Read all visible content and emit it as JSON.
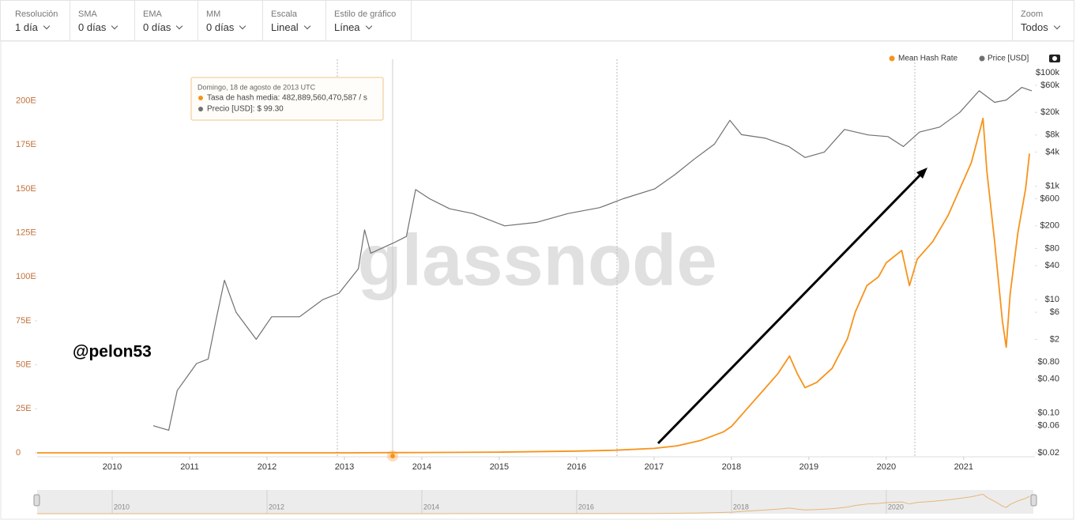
{
  "toolbar": [
    {
      "label": "Resolución",
      "value": "1 día"
    },
    {
      "label": "SMA",
      "value": "0 días"
    },
    {
      "label": "EMA",
      "value": "0 días"
    },
    {
      "label": "MM",
      "value": "0 días"
    },
    {
      "label": "Escala",
      "value": "Lineal"
    },
    {
      "label": "Estilo de gráfico",
      "value": "Línea"
    }
  ],
  "zoom": {
    "label": "Zoom",
    "value": "Todos"
  },
  "watermark": "glassnode",
  "annotation": "@pelon53",
  "tooltip": {
    "date": "Domingo, 18 de agosto de 2013 UTC",
    "hash": "Tasa de hash media: 482,889,560,470,587 / s",
    "price": "Precio [USD]: $ 99.30"
  },
  "navigator": {
    "ticks": [
      2010,
      2012,
      2014,
      2016,
      2018,
      2020
    ]
  },
  "chart_data": {
    "type": "line",
    "xlim": [
      2009.03,
      2021.9
    ],
    "xticks": [
      2010,
      2011,
      2012,
      2013,
      2014,
      2015,
      2016,
      2017,
      2018,
      2019,
      2020,
      2021
    ],
    "ylim": [
      0,
      216
    ],
    "yticks": [
      0,
      {
        "value": 25,
        "label": "25E"
      },
      {
        "value": 50,
        "label": "50E"
      },
      {
        "value": 75,
        "label": "75E"
      },
      {
        "value": 100,
        "label": "100E"
      },
      {
        "value": 125,
        "label": "125E"
      },
      {
        "value": 150,
        "label": "150E"
      },
      {
        "value": 175,
        "label": "175E"
      },
      {
        "value": 200,
        "label": "200E"
      }
    ],
    "y2lim": [
      0.02,
      100000
    ],
    "y2scale": "log",
    "y2ticks": [
      {
        "value": 100000,
        "label": "$100k"
      },
      {
        "value": 60000,
        "label": "$60k"
      },
      {
        "value": 20000,
        "label": "$20k"
      },
      {
        "value": 8000,
        "label": "$8k"
      },
      {
        "value": 4000,
        "label": "$4k"
      },
      {
        "value": 1000,
        "label": "$1k"
      },
      {
        "value": 600,
        "label": "$600"
      },
      {
        "value": 200,
        "label": "$200"
      },
      {
        "value": 80,
        "label": "$80"
      },
      {
        "value": 40,
        "label": "$40"
      },
      {
        "value": 10,
        "label": "$10"
      },
      {
        "value": 6,
        "label": "$6"
      },
      {
        "value": 2,
        "label": "$2"
      },
      {
        "value": 0.8,
        "label": "$0.80"
      },
      {
        "value": 0.4,
        "label": "$0.40"
      },
      {
        "value": 0.1,
        "label": "$0.10"
      },
      {
        "value": 0.06,
        "label": "$0.06"
      },
      {
        "value": 0.02,
        "label": "$0.02"
      }
    ],
    "series": [
      {
        "name": "Mean Hash Rate",
        "color": "#f7931a",
        "x": [
          2009.03,
          2010,
          2011,
          2012,
          2013,
          2014,
          2015,
          2016,
          2016.5,
          2017,
          2017.3,
          2017.6,
          2017.9,
          2018,
          2018.2,
          2018.4,
          2018.6,
          2018.75,
          2018.85,
          2018.95,
          2019.1,
          2019.3,
          2019.5,
          2019.6,
          2019.75,
          2019.9,
          2020,
          2020.2,
          2020.3,
          2020.4,
          2020.6,
          2020.8,
          2020.95,
          2021.1,
          2021.25,
          2021.3,
          2021.4,
          2021.5,
          2021.55,
          2021.6,
          2021.7,
          2021.8,
          2021.85
        ],
        "values": [
          0,
          0,
          0,
          0,
          0,
          0.2,
          0.4,
          1,
          1.5,
          2.5,
          4,
          7,
          12,
          15,
          25,
          35,
          45,
          55,
          45,
          37,
          40,
          48,
          65,
          80,
          95,
          100,
          108,
          115,
          95,
          110,
          120,
          135,
          150,
          165,
          190,
          160,
          120,
          75,
          60,
          90,
          125,
          150,
          170
        ]
      },
      {
        "name": "Price [USD]",
        "color": "#707070",
        "axis": "y2",
        "x": [
          2010.53,
          2010.73,
          2010.84,
          2011.09,
          2011.24,
          2011.35,
          2011.45,
          2011.6,
          2011.86,
          2012.06,
          2012.42,
          2012.72,
          2012.93,
          2013.18,
          2013.26,
          2013.34,
          2013.63,
          2013.8,
          2013.92,
          2014.1,
          2014.36,
          2014.66,
          2015.07,
          2015.48,
          2015.89,
          2016.3,
          2016.6,
          2017.01,
          2017.27,
          2017.52,
          2017.78,
          2017.98,
          2018.13,
          2018.44,
          2018.74,
          2018.95,
          2019.2,
          2019.46,
          2019.77,
          2020.02,
          2020.22,
          2020.43,
          2020.69,
          2020.95,
          2021.2,
          2021.4,
          2021.55,
          2021.75,
          2021.88
        ],
        "values": [
          0.06,
          0.05,
          0.25,
          0.75,
          0.9,
          5,
          22,
          6,
          2,
          5,
          5,
          10,
          13,
          35,
          170,
          66,
          99.3,
          130,
          870,
          600,
          400,
          330,
          200,
          230,
          330,
          420,
          600,
          900,
          1600,
          3000,
          5500,
          14500,
          8100,
          7000,
          5000,
          3200,
          4000,
          10000,
          8000,
          7500,
          5000,
          9000,
          11000,
          20000,
          48000,
          30000,
          33000,
          55000,
          48000
        ]
      }
    ]
  }
}
